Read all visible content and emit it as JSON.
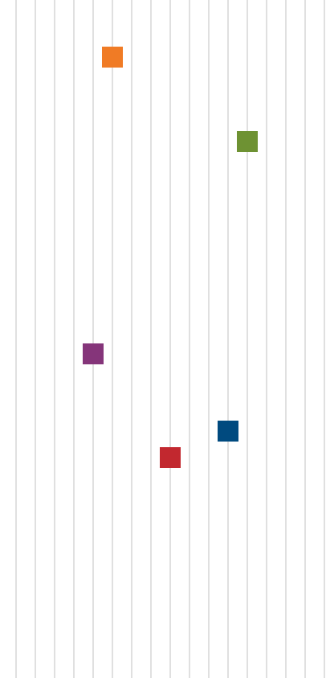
{
  "chart_data": {
    "type": "scatter",
    "title": "",
    "xlabel": "",
    "ylabel": "",
    "xlim": [
      0,
      16.42
    ],
    "ylim": [
      0,
      843
    ],
    "grid": {
      "vertical": true,
      "horizontal": false,
      "line_color": "#e0e0e0",
      "x_step": 1
    },
    "legend": "none",
    "marker": "square",
    "points": [
      {
        "x": 5.0,
        "y": 71,
        "color": "#f07b25"
      },
      {
        "x": 12.0,
        "y": 176,
        "color": "#6e9233"
      },
      {
        "x": 4.0,
        "y": 440,
        "color": "#85357a"
      },
      {
        "x": 11.0,
        "y": 536,
        "color": "#004a7f"
      },
      {
        "x": 8.0,
        "y": 569,
        "color": "#c2282f"
      }
    ]
  }
}
